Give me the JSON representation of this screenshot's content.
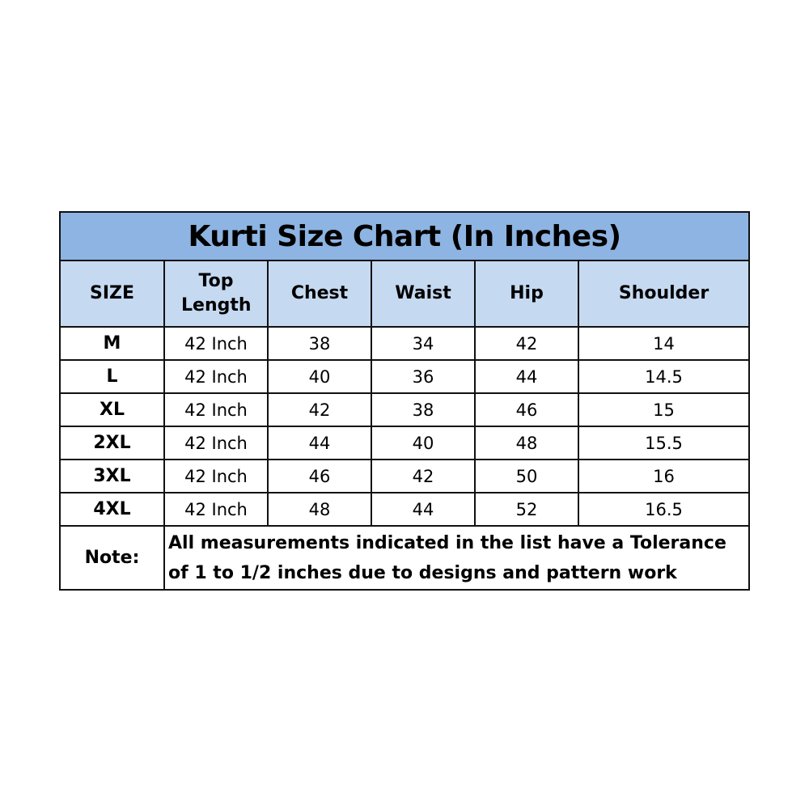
{
  "title": "Kurti Size Chart (In Inches)",
  "colors": {
    "title_bg": "#8db4e2",
    "header_bg": "#c5d9f1",
    "border": "#111111"
  },
  "headers": [
    "SIZE",
    "Top Length",
    "Chest",
    "Waist",
    "Hip",
    "Shoulder"
  ],
  "rows": [
    [
      "M",
      "42 Inch",
      "38",
      "34",
      "42",
      "14"
    ],
    [
      "L",
      "42 Inch",
      "40",
      "36",
      "44",
      "14.5"
    ],
    [
      "XL",
      "42 Inch",
      "42",
      "38",
      "46",
      "15"
    ],
    [
      "2XL",
      "42 Inch",
      "44",
      "40",
      "48",
      "15.5"
    ],
    [
      "3XL",
      "42 Inch",
      "46",
      "42",
      "50",
      "16"
    ],
    [
      "4XL",
      "42 Inch",
      "48",
      "44",
      "52",
      "16.5"
    ]
  ],
  "note": {
    "label": "Note:",
    "text": "All measurements indicated in the list have a Tolerance of 1 to 1/2 inches due to designs and pattern work"
  }
}
